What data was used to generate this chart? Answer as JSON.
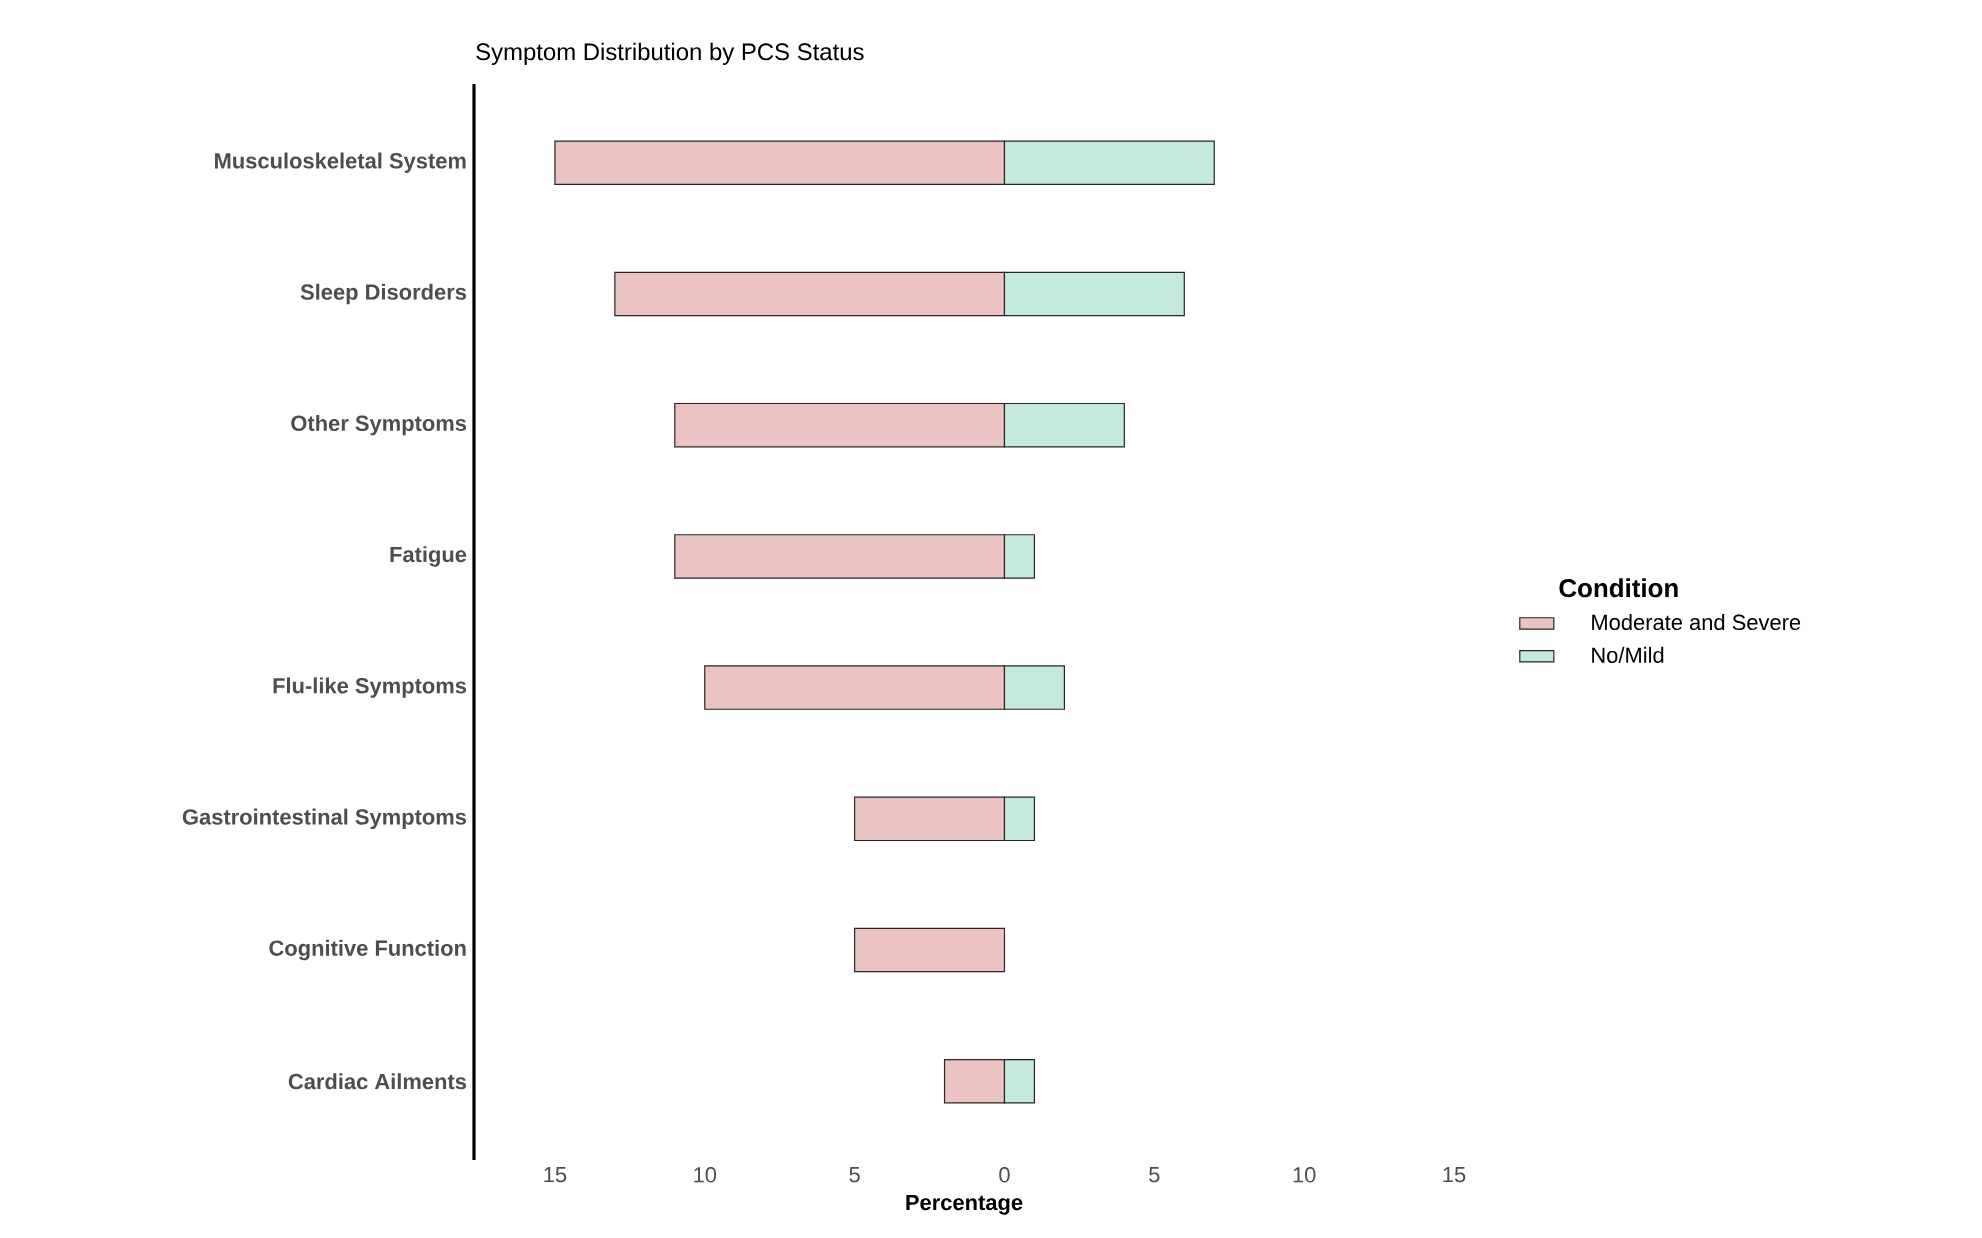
{
  "chart_data": {
    "type": "bar",
    "orientation": "horizontal",
    "title": "Symptom Distribution by PCS Status",
    "xlabel": "Percentage",
    "legend_title": "Condition",
    "legend": "right",
    "grid": false,
    "stacked": true,
    "categories": [
      "Musculoskeletal System",
      "Sleep Disorders",
      "Other Symptoms",
      "Fatigue",
      "Flu-like Symptoms",
      "Gastrointestinal Symptoms",
      "Cognitive Function",
      "Cardiac Ailments"
    ],
    "series": [
      {
        "name": "Moderate and Severe",
        "color": "#ecc3c3",
        "values": [
          -15,
          -13,
          -11,
          -11,
          -10,
          -5,
          -5,
          -2
        ]
      },
      {
        "name": "No/Mild",
        "color": "#c3eadd",
        "values": [
          7,
          6,
          4,
          1,
          2,
          1,
          0,
          1
        ]
      }
    ],
    "xlim": [
      -17.7,
      15
    ],
    "xticks": [
      {
        "value": -15,
        "label": "15"
      },
      {
        "value": -10,
        "label": "10"
      },
      {
        "value": -5,
        "label": "5"
      },
      0,
      5,
      10,
      15
    ]
  }
}
